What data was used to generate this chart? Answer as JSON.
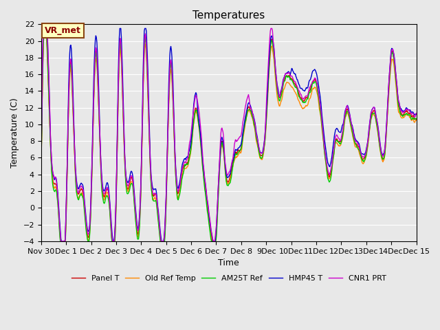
{
  "title": "Temperatures",
  "xlabel": "Time",
  "ylabel": "Temperature (C)",
  "ylim": [
    -4,
    22
  ],
  "yticks": [
    -4,
    -2,
    0,
    2,
    4,
    6,
    8,
    10,
    12,
    14,
    16,
    18,
    20,
    22
  ],
  "xtick_labels": [
    "Nov 30",
    "Dec 1",
    "Dec 2",
    "Dec 3",
    "Dec 4",
    "Dec 5",
    "Dec 6",
    "Dec 7",
    "Dec 8",
    "9Dec",
    "10Dec",
    "11Dec",
    "12Dec",
    "13Dec",
    "14Dec",
    "Dec 15"
  ],
  "xtick_positions": [
    0,
    48,
    96,
    144,
    192,
    240,
    288,
    336,
    384,
    432,
    480,
    528,
    576,
    624,
    672,
    720
  ],
  "legend_labels": [
    "Panel T",
    "Old Ref Temp",
    "AM25T Ref",
    "HMP45 T",
    "CNR1 PRT"
  ],
  "line_colors": [
    "#cc0000",
    "#ff8800",
    "#00cc00",
    "#0000cc",
    "#cc00cc"
  ],
  "line_widths": [
    1.0,
    1.0,
    1.0,
    1.0,
    1.0
  ],
  "bg_color": "#e8e8e8",
  "grid_color": "#ffffff",
  "title_fontsize": 11,
  "label_fontsize": 9,
  "tick_fontsize": 8,
  "annotation_text": "VR_met",
  "base_keypoints_x": [
    0,
    12,
    20,
    30,
    48,
    55,
    65,
    80,
    96,
    104,
    115,
    130,
    144,
    150,
    160,
    175,
    192,
    198,
    210,
    220,
    240,
    248,
    258,
    270,
    288,
    295,
    310,
    325,
    336,
    345,
    355,
    370,
    384,
    395,
    415,
    432,
    440,
    455,
    465,
    480,
    490,
    500,
    515,
    528,
    540,
    555,
    565,
    576,
    585,
    598,
    610,
    624,
    635,
    648,
    660,
    672,
    685,
    700,
    710,
    720
  ],
  "base_keypoints_y": [
    3.5,
    19.0,
    5.0,
    2.5,
    -1.0,
    17.0,
    5.5,
    2.0,
    1.0,
    18.5,
    4.5,
    1.5,
    1.0,
    19.0,
    6.5,
    3.5,
    3.5,
    19.5,
    4.5,
    1.5,
    1.0,
    17.5,
    4.5,
    4.0,
    7.5,
    11.5,
    5.5,
    -2.5,
    -3.0,
    7.5,
    4.0,
    6.0,
    7.5,
    11.5,
    8.0,
    10.5,
    19.5,
    13.5,
    15.0,
    15.5,
    14.5,
    13.0,
    14.0,
    15.0,
    9.5,
    4.0,
    8.0,
    8.0,
    11.5,
    9.0,
    7.0,
    6.5,
    11.5,
    8.5,
    7.0,
    18.5,
    13.0,
    11.5,
    11.0,
    11.0
  ]
}
